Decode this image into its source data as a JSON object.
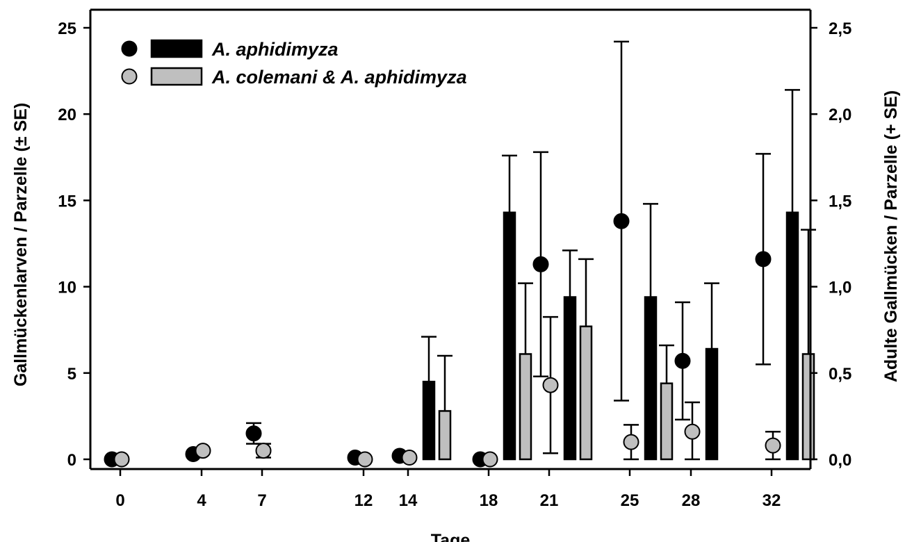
{
  "chart_data": {
    "type": "bar+scatter",
    "xlabel": "Tage",
    "ylabel_left": "Gallmückenlarven / Parzelle (± SE)",
    "ylabel_right": "Adulte Gallmücken / Parzelle (+ SE)",
    "x_ticks": [
      "0",
      "4",
      "7",
      "12",
      "14",
      "18",
      "21",
      "25",
      "28",
      "32"
    ],
    "ylim_left": [
      0,
      25
    ],
    "yticks_left": [
      "0",
      "5",
      "10",
      "15",
      "20",
      "25"
    ],
    "ylim_right": [
      0,
      2.5
    ],
    "yticks_right": [
      "0,0",
      "0,5",
      "1,0",
      "1,5",
      "2,0",
      "2,5"
    ],
    "legend": [
      {
        "label": "A. aphidimyza",
        "color": "#000000"
      },
      {
        "label": "A. colemani & A. aphidimyza",
        "color": "#bfbfbf"
      }
    ],
    "larvae_series": [
      {
        "name": "A. aphidimyza",
        "color": "#000000",
        "points": [
          {
            "day": 0,
            "mean": 0.0,
            "se": 0
          },
          {
            "day": 4,
            "mean": 0.3,
            "se": 0
          },
          {
            "day": 7,
            "mean": 1.5,
            "se": 0.6
          },
          {
            "day": 12,
            "mean": 0.1,
            "se": 0
          },
          {
            "day": 14,
            "mean": 0.2,
            "se": 0
          },
          {
            "day": 18,
            "mean": 0.0,
            "se": 0
          },
          {
            "day": 21,
            "mean": 11.3,
            "se": 6.5
          },
          {
            "day": 25,
            "mean": 13.8,
            "se": 10.4
          },
          {
            "day": 28,
            "mean": 5.7,
            "se": 3.4
          },
          {
            "day": 32,
            "mean": 11.6,
            "se": 6.1
          }
        ]
      },
      {
        "name": "A. colemani & A. aphidimyza",
        "color": "#bfbfbf",
        "points": [
          {
            "day": 0,
            "mean": 0.0,
            "se": 0
          },
          {
            "day": 4,
            "mean": 0.5,
            "se": 0
          },
          {
            "day": 7,
            "mean": 0.5,
            "se": 0.4
          },
          {
            "day": 12,
            "mean": 0.0,
            "se": 0
          },
          {
            "day": 14,
            "mean": 0.1,
            "se": 0
          },
          {
            "day": 18,
            "mean": 0.0,
            "se": 0
          },
          {
            "day": 21,
            "mean": 4.3,
            "se": 3.95
          },
          {
            "day": 25,
            "mean": 1.0,
            "se": 1.0
          },
          {
            "day": 28,
            "mean": 1.6,
            "se": 1.7
          },
          {
            "day": 32,
            "mean": 0.8,
            "se": 0.8
          }
        ]
      }
    ],
    "adult_series": [
      {
        "name": "A. aphidimyza",
        "color": "#000000",
        "points": [
          {
            "day": 14,
            "mean": 0.45,
            "se": 0.26
          },
          {
            "day": 18,
            "mean": 1.43,
            "se": 0.33
          },
          {
            "day": 21,
            "mean": 0.94,
            "se": 0.27
          },
          {
            "day": 25,
            "mean": 0.94,
            "se": 0.54
          },
          {
            "day": 28,
            "mean": 0.64,
            "se": 0.38
          },
          {
            "day": 32,
            "mean": 1.43,
            "se": 0.71
          }
        ]
      },
      {
        "name": "A. colemani & A. aphidimyza",
        "color": "#bfbfbf",
        "points": [
          {
            "day": 14,
            "mean": 0.28,
            "se": 0.32
          },
          {
            "day": 18,
            "mean": 0.61,
            "se": 0.41
          },
          {
            "day": 21,
            "mean": 0.77,
            "se": 0.39
          },
          {
            "day": 25,
            "mean": 0.44,
            "se": 0.22
          },
          {
            "day": 32,
            "mean": 0.61,
            "se": 0.72
          }
        ]
      }
    ]
  }
}
